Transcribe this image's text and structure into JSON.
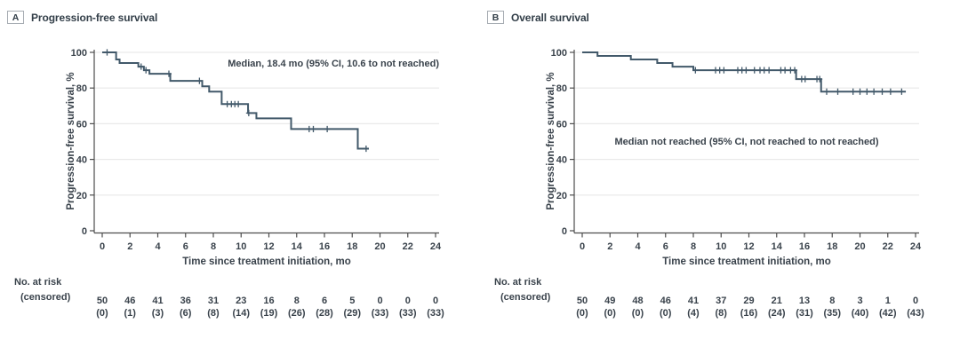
{
  "figure": {
    "risk_label": "No. at risk",
    "censored_label": "(censored)",
    "colors": {
      "curve": "#42596a",
      "text": "#39424b",
      "title": "#323e48",
      "grid": "#e9e9e9",
      "axis": "#4d4d4d"
    }
  },
  "chart_data": [
    {
      "type": "line",
      "subtype": "kaplan-meier-step",
      "panel_letter": "A",
      "title": "Progression-free survival",
      "ylabel": "Progression-free survival, %",
      "xlabel": "Time since treatment initiation, mo",
      "annotation": "Median, 18.4 mo (95% CI, 10.6 to not reached)",
      "xlim": [
        0,
        24
      ],
      "ylim": [
        0,
        100
      ],
      "xticks": [
        0,
        2,
        4,
        6,
        8,
        10,
        12,
        14,
        16,
        18,
        20,
        22,
        24
      ],
      "yticks": [
        0,
        20,
        40,
        60,
        80,
        100
      ],
      "grid": "horizontal",
      "km_steps": [
        [
          0,
          100
        ],
        [
          1.0,
          96
        ],
        [
          1.25,
          94
        ],
        [
          2.6,
          92
        ],
        [
          3.0,
          90
        ],
        [
          3.4,
          88
        ],
        [
          4.9,
          84
        ],
        [
          7.2,
          81
        ],
        [
          7.7,
          78
        ],
        [
          8.6,
          71
        ],
        [
          10.5,
          66
        ],
        [
          11.1,
          63
        ],
        [
          13.6,
          57
        ],
        [
          18.4,
          46
        ]
      ],
      "end_time": 19.2,
      "censor_marks": [
        [
          0.35,
          100
        ],
        [
          2.8,
          92
        ],
        [
          3.15,
          90
        ],
        [
          4.8,
          88
        ],
        [
          7.0,
          84
        ],
        [
          9.0,
          71
        ],
        [
          9.3,
          71
        ],
        [
          9.55,
          71
        ],
        [
          9.8,
          71
        ],
        [
          10.55,
          66
        ],
        [
          14.9,
          57
        ],
        [
          15.2,
          57
        ],
        [
          16.2,
          57
        ],
        [
          19.0,
          46
        ]
      ],
      "risk_table": {
        "at_risk": [
          50,
          46,
          41,
          36,
          31,
          23,
          16,
          8,
          6,
          5,
          0,
          0,
          0
        ],
        "censored": [
          "(0)",
          "(1)",
          "(3)",
          "(6)",
          "(8)",
          "(14)",
          "(19)",
          "(26)",
          "(28)",
          "(29)",
          "(33)",
          "(33)",
          "(33)"
        ]
      }
    },
    {
      "type": "line",
      "subtype": "kaplan-meier-step",
      "panel_letter": "B",
      "title": "Overall survival",
      "ylabel": "Progression-free survival, %",
      "xlabel": "Time since treatment initiation, mo",
      "annotation": "Median not reached (95% CI, not reached to not reached)",
      "xlim": [
        0,
        24
      ],
      "ylim": [
        0,
        100
      ],
      "xticks": [
        0,
        2,
        4,
        6,
        8,
        10,
        12,
        14,
        16,
        18,
        20,
        22,
        24
      ],
      "yticks": [
        0,
        20,
        40,
        60,
        80,
        100
      ],
      "grid": "horizontal",
      "km_steps": [
        [
          0,
          100
        ],
        [
          1.1,
          98
        ],
        [
          3.5,
          96
        ],
        [
          5.4,
          94
        ],
        [
          6.5,
          92
        ],
        [
          8.0,
          90
        ],
        [
          15.4,
          85
        ],
        [
          17.2,
          78
        ]
      ],
      "end_time": 23.3,
      "censor_marks": [
        [
          8.15,
          90
        ],
        [
          9.6,
          90
        ],
        [
          9.9,
          90
        ],
        [
          10.2,
          90
        ],
        [
          11.2,
          90
        ],
        [
          11.5,
          90
        ],
        [
          11.8,
          90
        ],
        [
          12.4,
          90
        ],
        [
          12.8,
          90
        ],
        [
          13.1,
          90
        ],
        [
          13.45,
          90
        ],
        [
          14.3,
          90
        ],
        [
          14.6,
          90
        ],
        [
          15.0,
          90
        ],
        [
          15.3,
          90
        ],
        [
          15.8,
          85
        ],
        [
          16.05,
          85
        ],
        [
          16.9,
          85
        ],
        [
          17.1,
          85
        ],
        [
          17.6,
          78
        ],
        [
          18.4,
          78
        ],
        [
          19.5,
          78
        ],
        [
          20.0,
          78
        ],
        [
          20.5,
          78
        ],
        [
          21.0,
          78
        ],
        [
          21.6,
          78
        ],
        [
          22.2,
          78
        ],
        [
          23.0,
          78
        ]
      ],
      "risk_table": {
        "at_risk": [
          50,
          49,
          48,
          46,
          41,
          37,
          29,
          21,
          13,
          8,
          3,
          1,
          0
        ],
        "censored": [
          "(0)",
          "(0)",
          "(0)",
          "(0)",
          "(4)",
          "(8)",
          "(16)",
          "(24)",
          "(31)",
          "(35)",
          "(40)",
          "(42)",
          "(43)"
        ]
      }
    }
  ]
}
